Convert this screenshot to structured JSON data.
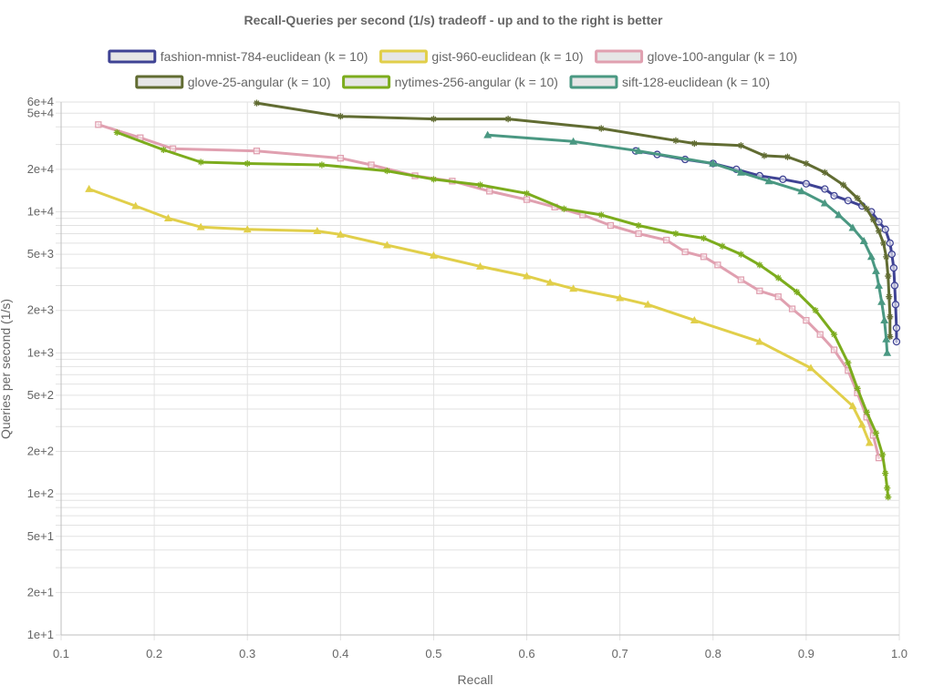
{
  "chart_data": {
    "type": "line",
    "title": "Recall-Queries per second (1/s) tradeoff - up and to the right is better",
    "xlabel": "Recall",
    "ylabel": "Queries per second (1/s)",
    "xscale": "linear",
    "yscale": "log",
    "xlim": [
      0.1,
      1.0
    ],
    "ylim": [
      10,
      60000
    ],
    "x_ticks": [
      "0.1",
      "0.2",
      "0.3",
      "0.4",
      "0.5",
      "0.6",
      "0.7",
      "0.8",
      "0.9",
      "1.0"
    ],
    "y_tick_labels": [
      {
        "value": 10,
        "label": "1e+1"
      },
      {
        "value": 20,
        "label": "2e+1"
      },
      {
        "value": 50,
        "label": "5e+1"
      },
      {
        "value": 100,
        "label": "1e+2"
      },
      {
        "value": 200,
        "label": "2e+2"
      },
      {
        "value": 500,
        "label": "5e+2"
      },
      {
        "value": 1000,
        "label": "1e+3"
      },
      {
        "value": 2000,
        "label": "2e+3"
      },
      {
        "value": 5000,
        "label": "5e+3"
      },
      {
        "value": 10000,
        "label": "1e+4"
      },
      {
        "value": 20000,
        "label": "2e+4"
      },
      {
        "value": 50000,
        "label": "5e+4"
      },
      {
        "value": 60000,
        "label": "6e+4"
      }
    ],
    "legend_position": "top",
    "grid": true,
    "series": [
      {
        "name": "fashion-mnist-784-euclidean (k = 10)",
        "color": "#3f4394",
        "marker": "circle",
        "points": [
          [
            0.717,
            27000
          ],
          [
            0.74,
            25500
          ],
          [
            0.77,
            23500
          ],
          [
            0.8,
            22000
          ],
          [
            0.825,
            20000
          ],
          [
            0.85,
            18000
          ],
          [
            0.875,
            17000
          ],
          [
            0.9,
            15800
          ],
          [
            0.92,
            14500
          ],
          [
            0.93,
            13000
          ],
          [
            0.945,
            12000
          ],
          [
            0.96,
            11000
          ],
          [
            0.97,
            10000
          ],
          [
            0.978,
            8500
          ],
          [
            0.985,
            7500
          ],
          [
            0.99,
            6000
          ],
          [
            0.992,
            5000
          ],
          [
            0.994,
            4000
          ],
          [
            0.995,
            3000
          ],
          [
            0.996,
            2200
          ],
          [
            0.997,
            1500
          ],
          [
            0.997,
            1200
          ]
        ]
      },
      {
        "name": "gist-960-euclidean (k = 10)",
        "color": "#e1cf4a",
        "marker": "triangle",
        "points": [
          [
            0.13,
            14500
          ],
          [
            0.18,
            11000
          ],
          [
            0.215,
            9000
          ],
          [
            0.25,
            7800
          ],
          [
            0.3,
            7500
          ],
          [
            0.375,
            7300
          ],
          [
            0.4,
            6900
          ],
          [
            0.45,
            5800
          ],
          [
            0.5,
            4900
          ],
          [
            0.55,
            4100
          ],
          [
            0.6,
            3500
          ],
          [
            0.625,
            3150
          ],
          [
            0.65,
            2850
          ],
          [
            0.7,
            2450
          ],
          [
            0.73,
            2200
          ],
          [
            0.78,
            1700
          ],
          [
            0.85,
            1200
          ],
          [
            0.905,
            780
          ],
          [
            0.95,
            420
          ],
          [
            0.96,
            310
          ],
          [
            0.968,
            230
          ]
        ]
      },
      {
        "name": "glove-100-angular (k = 10)",
        "color": "#e0a0b0",
        "marker": "square",
        "points": [
          [
            0.14,
            41500
          ],
          [
            0.185,
            33500
          ],
          [
            0.22,
            28000
          ],
          [
            0.31,
            27000
          ],
          [
            0.4,
            24000
          ],
          [
            0.433,
            21500
          ],
          [
            0.48,
            18000
          ],
          [
            0.52,
            16500
          ],
          [
            0.56,
            14000
          ],
          [
            0.6,
            12200
          ],
          [
            0.63,
            10800
          ],
          [
            0.66,
            9500
          ],
          [
            0.69,
            8000
          ],
          [
            0.72,
            7000
          ],
          [
            0.75,
            6300
          ],
          [
            0.77,
            5200
          ],
          [
            0.79,
            4800
          ],
          [
            0.805,
            4200
          ],
          [
            0.83,
            3300
          ],
          [
            0.85,
            2750
          ],
          [
            0.87,
            2500
          ],
          [
            0.885,
            2050
          ],
          [
            0.9,
            1700
          ],
          [
            0.915,
            1350
          ],
          [
            0.93,
            1050
          ],
          [
            0.945,
            750
          ],
          [
            0.955,
            520
          ],
          [
            0.965,
            350
          ],
          [
            0.972,
            260
          ],
          [
            0.978,
            180
          ]
        ]
      },
      {
        "name": "glove-25-angular (k = 10)",
        "color": "#616c32",
        "marker": "star",
        "points": [
          [
            0.31,
            59000
          ],
          [
            0.4,
            47500
          ],
          [
            0.5,
            45500
          ],
          [
            0.58,
            45500
          ],
          [
            0.68,
            39000
          ],
          [
            0.76,
            32000
          ],
          [
            0.78,
            30500
          ],
          [
            0.83,
            29500
          ],
          [
            0.855,
            25000
          ],
          [
            0.88,
            24500
          ],
          [
            0.9,
            22000
          ],
          [
            0.92,
            19000
          ],
          [
            0.94,
            15500
          ],
          [
            0.955,
            12500
          ],
          [
            0.965,
            10500
          ],
          [
            0.972,
            8800
          ],
          [
            0.978,
            7300
          ],
          [
            0.983,
            6000
          ],
          [
            0.986,
            4800
          ],
          [
            0.988,
            3500
          ],
          [
            0.989,
            2500
          ],
          [
            0.99,
            1800
          ],
          [
            0.99,
            1300
          ]
        ]
      },
      {
        "name": "nytimes-256-angular (k = 10)",
        "color": "#7cac1d",
        "marker": "star",
        "points": [
          [
            0.16,
            36500
          ],
          [
            0.21,
            27500
          ],
          [
            0.25,
            22500
          ],
          [
            0.3,
            22000
          ],
          [
            0.38,
            21500
          ],
          [
            0.45,
            19500
          ],
          [
            0.5,
            17000
          ],
          [
            0.55,
            15500
          ],
          [
            0.6,
            13500
          ],
          [
            0.64,
            10500
          ],
          [
            0.68,
            9500
          ],
          [
            0.72,
            8000
          ],
          [
            0.76,
            7000
          ],
          [
            0.79,
            6500
          ],
          [
            0.81,
            5700
          ],
          [
            0.83,
            5000
          ],
          [
            0.85,
            4200
          ],
          [
            0.87,
            3400
          ],
          [
            0.89,
            2700
          ],
          [
            0.91,
            2000
          ],
          [
            0.93,
            1350
          ],
          [
            0.945,
            850
          ],
          [
            0.955,
            560
          ],
          [
            0.965,
            380
          ],
          [
            0.975,
            270
          ],
          [
            0.982,
            190
          ],
          [
            0.985,
            140
          ],
          [
            0.987,
            110
          ],
          [
            0.988,
            95
          ]
        ]
      },
      {
        "name": "sift-128-euclidean (k = 10)",
        "color": "#4a9882",
        "marker": "triangle",
        "points": [
          [
            0.558,
            35000
          ],
          [
            0.65,
            31500
          ],
          [
            0.72,
            27000
          ],
          [
            0.8,
            22000
          ],
          [
            0.83,
            19000
          ],
          [
            0.86,
            16500
          ],
          [
            0.895,
            14000
          ],
          [
            0.92,
            11500
          ],
          [
            0.935,
            9500
          ],
          [
            0.95,
            7700
          ],
          [
            0.962,
            6200
          ],
          [
            0.97,
            4800
          ],
          [
            0.975,
            3800
          ],
          [
            0.978,
            3000
          ],
          [
            0.981,
            2300
          ],
          [
            0.984,
            1700
          ],
          [
            0.986,
            1250
          ],
          [
            0.987,
            1000
          ]
        ]
      }
    ]
  }
}
